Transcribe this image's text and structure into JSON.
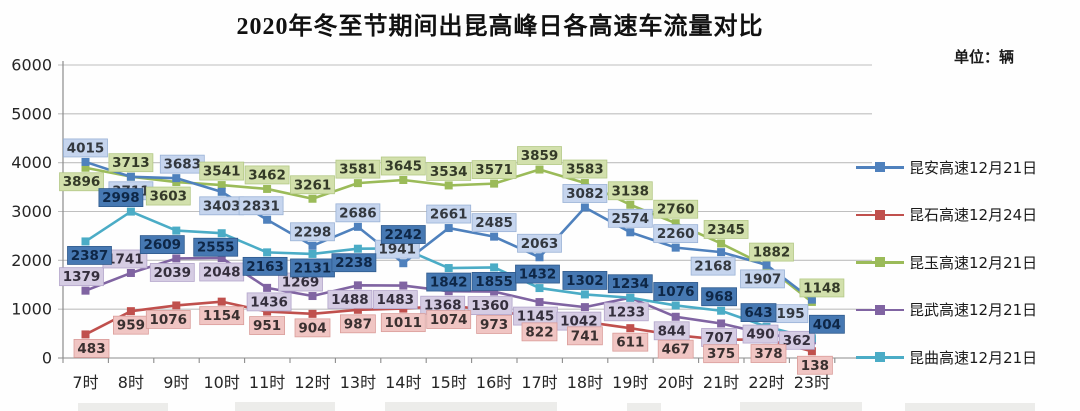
{
  "title": "2020年冬至节期间出昆高峰日各高速车流量对比",
  "unit_label": "单位：辆",
  "chart_data": {
    "type": "line",
    "title": "2020年冬至节期间出昆高峰日各高速车流量对比",
    "unit": "单位：辆",
    "xlabel": "",
    "ylabel": "",
    "ylim": [
      0,
      6000
    ],
    "ytick_step": 1000,
    "yticks": [
      "0",
      "1000",
      "2000",
      "3000",
      "4000",
      "5000",
      "6000"
    ],
    "grid": true,
    "legend_position": "right",
    "data_labels": true,
    "categories": [
      "7时",
      "8时",
      "9时",
      "10时",
      "11时",
      "12时",
      "13时",
      "14时",
      "15时",
      "16时",
      "17时",
      "18时",
      "19时",
      "20时",
      "21时",
      "22时",
      "23时"
    ],
    "series": [
      {
        "name": "昆安高速12月21日",
        "color": "#4F81BD",
        "label_bg": "#C6D5EE",
        "label_border": "#9AB2D6",
        "label_text": "#33383f",
        "values": [
          4015,
          3711,
          3683,
          3403,
          2831,
          2298,
          2686,
          1941,
          2661,
          2485,
          2063,
          3082,
          2574,
          2260,
          2168,
          1907,
          1195
        ]
      },
      {
        "name": "昆石高速12月24日",
        "color": "#C0504D",
        "label_bg": "#F0C5C3",
        "label_border": "#DA9D9A",
        "label_text": "#3a3030",
        "values": [
          483,
          959,
          1076,
          1154,
          951,
          904,
          987,
          1011,
          1074,
          973,
          822,
          741,
          611,
          467,
          375,
          378,
          138
        ]
      },
      {
        "name": "昆玉高速12月21日",
        "color": "#9BBB59",
        "label_bg": "#D2E0AC",
        "label_border": "#b4c987",
        "label_text": "#343a28",
        "values": [
          3896,
          3713,
          3603,
          3541,
          3462,
          3261,
          3581,
          3645,
          3534,
          3571,
          3859,
          3583,
          3138,
          2760,
          2345,
          1882,
          1148
        ]
      },
      {
        "name": "昆武高速12月21日",
        "color": "#8064A2",
        "label_bg": "#D5CCE3",
        "label_border": "#b3a5cb",
        "label_text": "#352f3d",
        "values": [
          1379,
          1741,
          2039,
          2048,
          1436,
          1269,
          1488,
          1483,
          1368,
          1360,
          1145,
          1042,
          1233,
          844,
          707,
          490,
          362
        ]
      },
      {
        "name": "昆曲高速12月21日",
        "color": "#4BACC6",
        "label_bg": "#4678B2",
        "label_border": "#2f5a8d",
        "label_text": "#0e2747",
        "values": [
          2387,
          2998,
          2609,
          2555,
          2163,
          2131,
          2238,
          2242,
          1842,
          1855,
          1432,
          1302,
          1234,
          1076,
          968,
          643,
          404
        ]
      }
    ]
  }
}
